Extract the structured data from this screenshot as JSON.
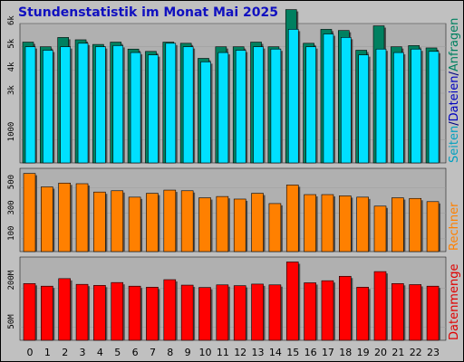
{
  "title": "Stundenstatistik im Monat Mai 2025",
  "chart_data": [
    {
      "type": "bar",
      "categories": [
        "0",
        "1",
        "2",
        "3",
        "4",
        "5",
        "6",
        "7",
        "8",
        "9",
        "10",
        "11",
        "12",
        "13",
        "14",
        "15",
        "16",
        "17",
        "18",
        "19",
        "20",
        "21",
        "22",
        "23"
      ],
      "ylabel": [
        "Seiten",
        "Dateien",
        "Anfragen"
      ],
      "yticks": [
        {
          "label": "6k",
          "value": 6000
        },
        {
          "label": "5k",
          "value": 5000
        },
        {
          "label": "4k",
          "value": 4000
        },
        {
          "label": "3k",
          "value": 3000
        },
        {
          "label": "1000",
          "value": 1000
        }
      ],
      "series": [
        {
          "name": "Anfragen",
          "color": "#008060",
          "values": [
            5200,
            5000,
            5400,
            5300,
            5100,
            5200,
            4900,
            4800,
            5200,
            5150,
            4500,
            5000,
            5000,
            5200,
            5000,
            6600,
            5150,
            5750,
            5700,
            4850,
            5900,
            5000,
            5050,
            4950
          ]
        },
        {
          "name": "Dateien",
          "color": "#00e0ff",
          "values": [
            5000,
            4850,
            5000,
            5150,
            5000,
            5050,
            4750,
            4650,
            5150,
            5000,
            4350,
            4750,
            4850,
            5000,
            4900,
            5750,
            5000,
            5550,
            5400,
            4650,
            4900,
            4750,
            4900,
            4800
          ]
        }
      ]
    },
    {
      "type": "bar",
      "categories": [
        "0",
        "1",
        "2",
        "3",
        "4",
        "5",
        "6",
        "7",
        "8",
        "9",
        "10",
        "11",
        "12",
        "13",
        "14",
        "15",
        "16",
        "17",
        "18",
        "19",
        "20",
        "21",
        "22",
        "23"
      ],
      "ylabel": "Rechner",
      "yticks": [
        {
          "label": "500",
          "value": 500
        },
        {
          "label": "300",
          "value": 300
        },
        {
          "label": "100",
          "value": 100
        }
      ],
      "series": [
        {
          "name": "Rechner",
          "color": "#ff8000",
          "values": [
            610,
            505,
            535,
            530,
            465,
            475,
            425,
            455,
            480,
            475,
            420,
            430,
            410,
            455,
            375,
            520,
            445,
            445,
            435,
            425,
            355,
            420,
            415,
            390
          ]
        }
      ]
    },
    {
      "type": "bar",
      "categories": [
        "0",
        "1",
        "2",
        "3",
        "4",
        "5",
        "6",
        "7",
        "8",
        "9",
        "10",
        "11",
        "12",
        "13",
        "14",
        "15",
        "16",
        "17",
        "18",
        "19",
        "20",
        "21",
        "22",
        "23"
      ],
      "ylabel": "Datenmenge",
      "yticks": [
        {
          "label": "200M",
          "value": 200
        },
        {
          "label": "50M",
          "value": 50
        }
      ],
      "series": [
        {
          "name": "Datenmenge",
          "color": "#ff0000",
          "values": [
            218,
            208,
            237,
            215,
            211,
            222,
            208,
            204,
            233,
            212,
            203,
            213,
            210,
            216,
            213,
            301,
            221,
            229,
            246,
            204,
            264,
            218,
            214,
            208
          ]
        }
      ]
    }
  ]
}
